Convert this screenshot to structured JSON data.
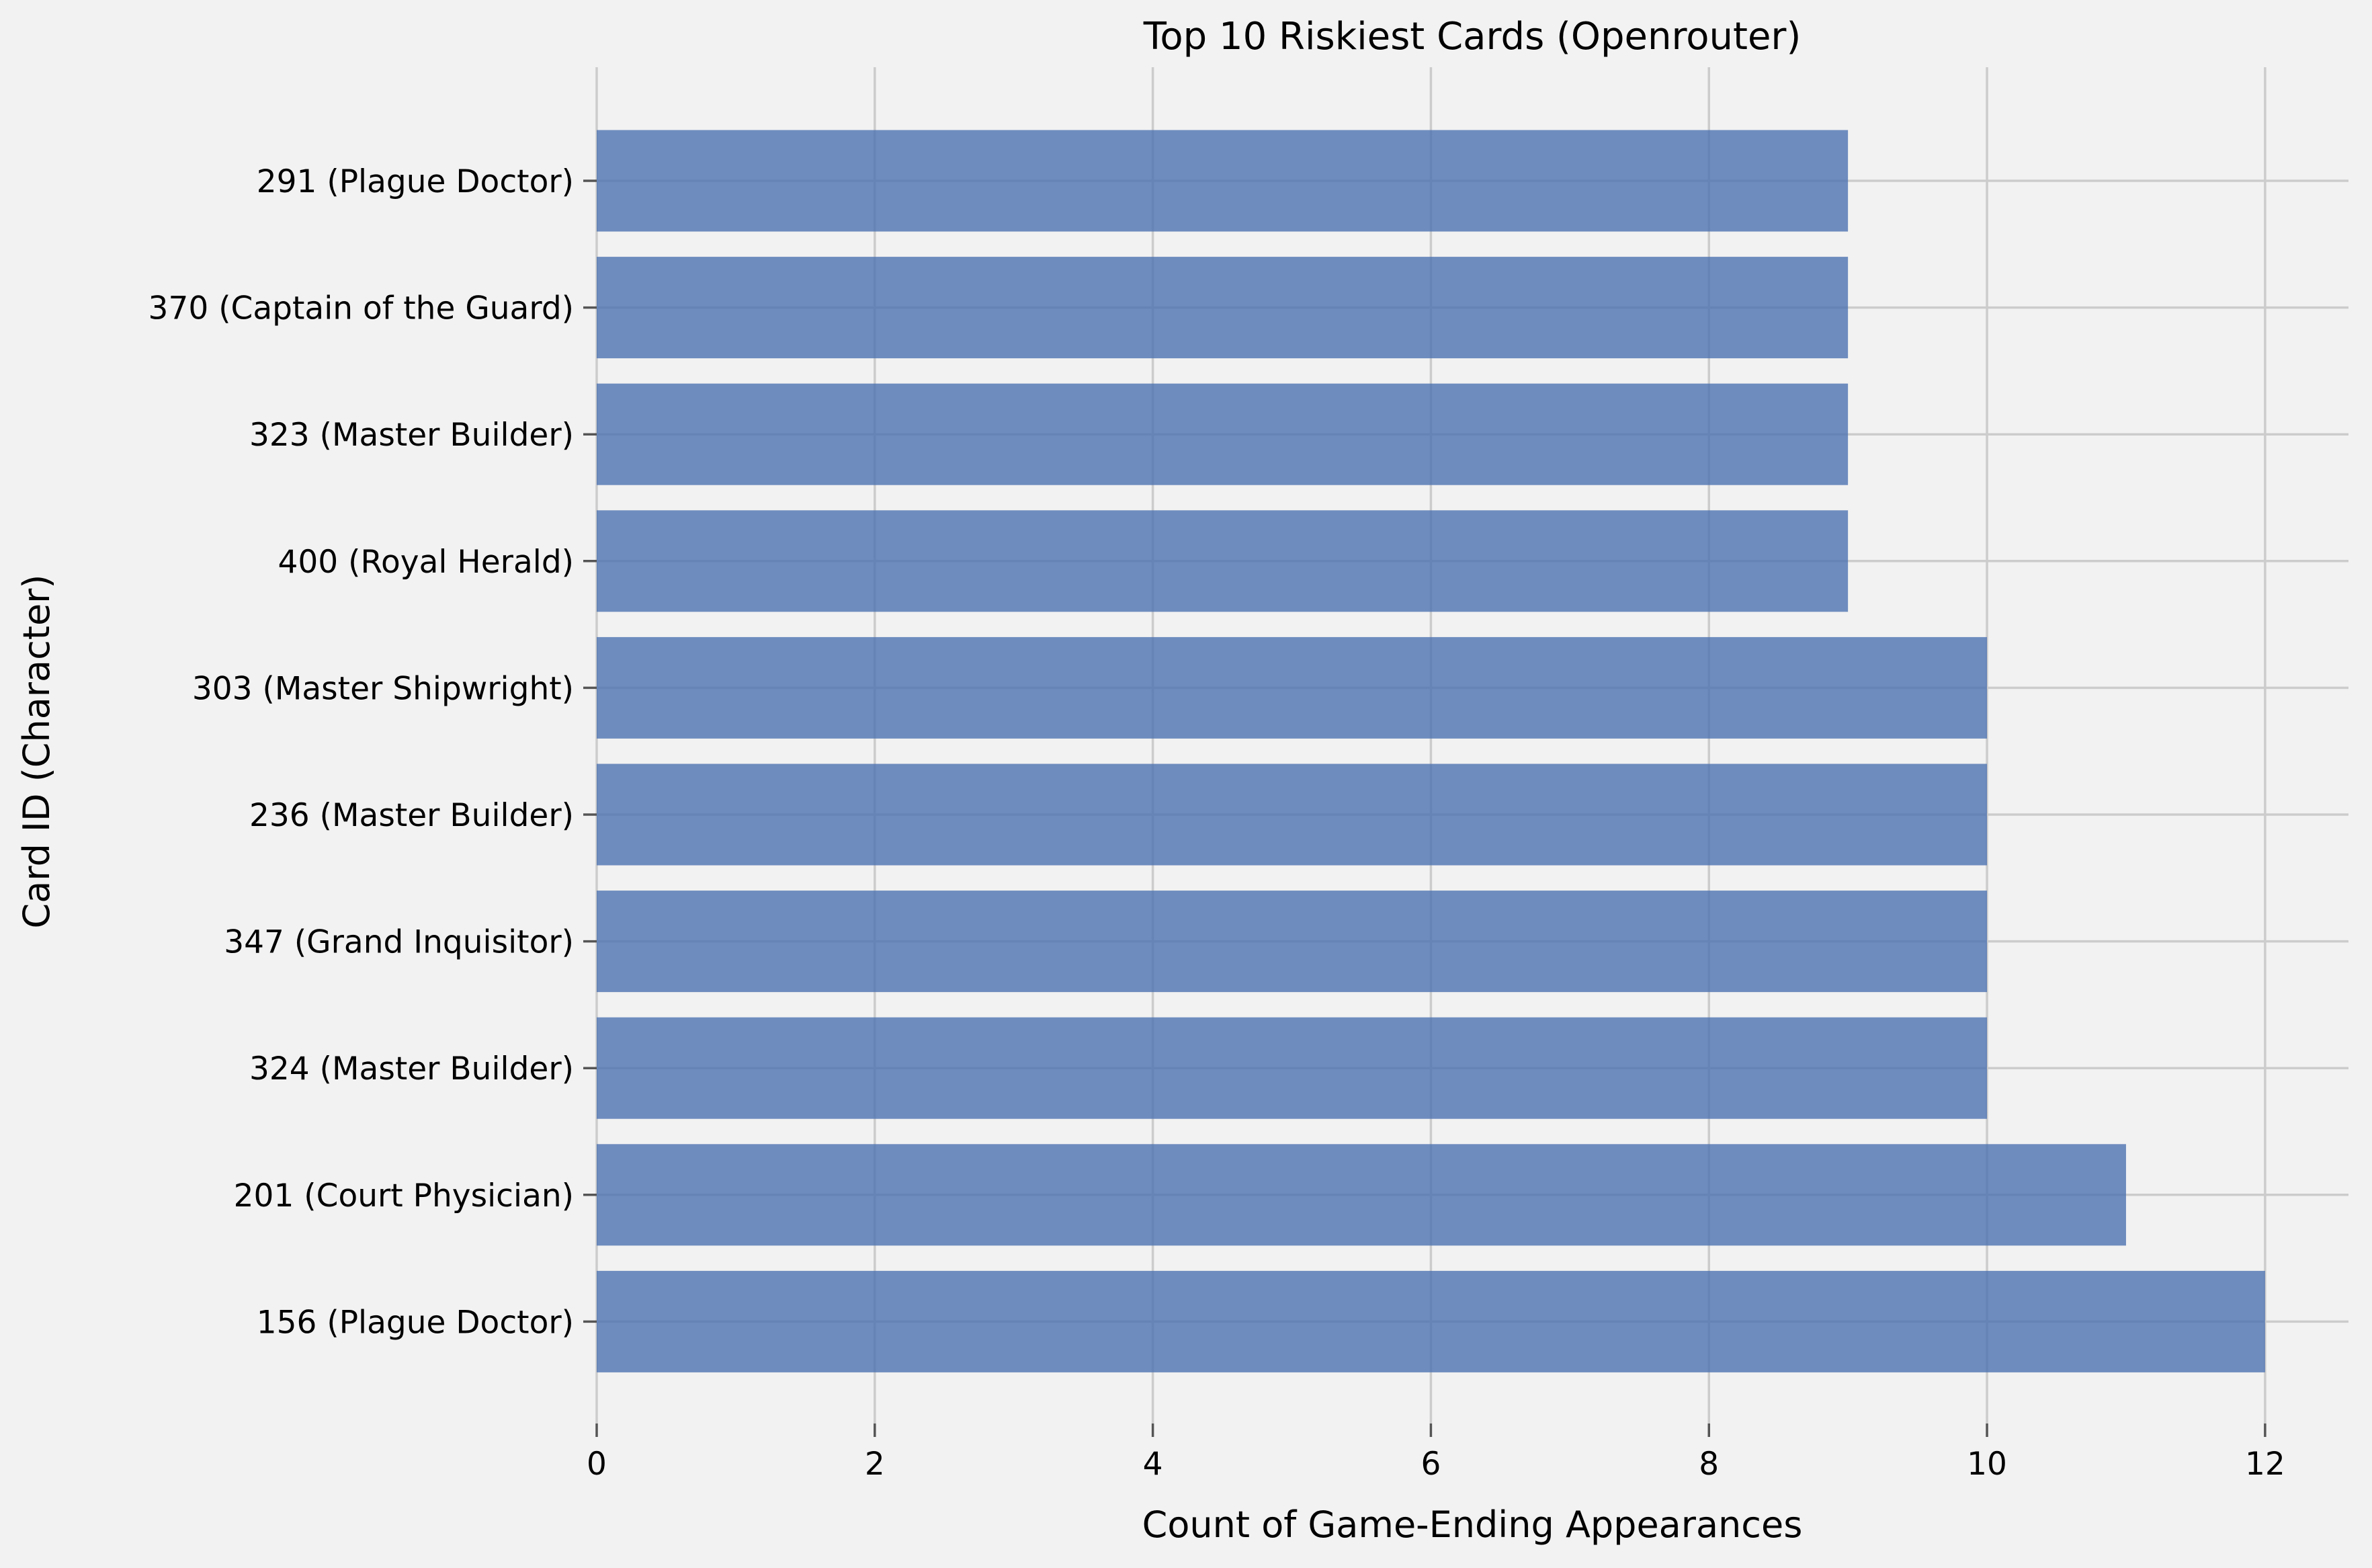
{
  "chart_data": {
    "type": "bar",
    "orientation": "horizontal",
    "title": "Top 10 Riskiest Cards (Openrouter)",
    "xlabel": "Count of Game-Ending Appearances",
    "ylabel": "Card ID (Character)",
    "categories": [
      "291 (Plague Doctor)",
      "370 (Captain of the Guard)",
      "323 (Master Builder)",
      "400 (Royal Herald)",
      "303 (Master Shipwright)",
      "236 (Master Builder)",
      "347 (Grand Inquisitor)",
      "324 (Master Builder)",
      "201 (Court Physician)",
      "156 (Plague Doctor)"
    ],
    "values": [
      9,
      9,
      9,
      9,
      10,
      10,
      10,
      10,
      11,
      12
    ],
    "xlim": [
      0,
      12.6
    ],
    "xticks": [
      "0",
      "2",
      "4",
      "6",
      "8",
      "10",
      "12"
    ],
    "grid": true,
    "bar_color": "#4c72b0",
    "background_color": "#f2f2f2",
    "grid_color": "#cccccc"
  }
}
